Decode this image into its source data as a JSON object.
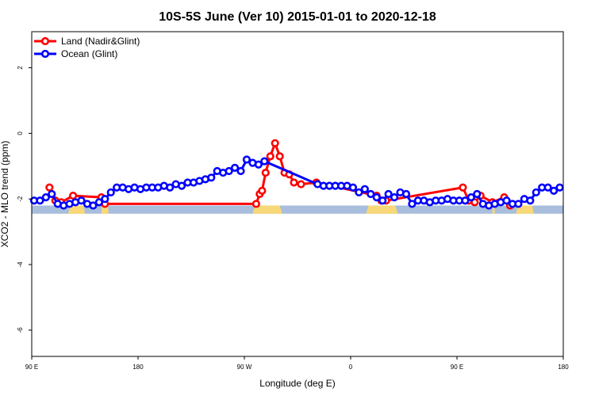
{
  "chart_data": {
    "type": "line",
    "title": "10S-5S June (Ver 10)   2015-01-01 to 2020-12-18",
    "xlabel": "Longitude (deg E)",
    "ylabel": "XCO2 - MLO trend (ppm)",
    "xlim": [
      90,
      540
    ],
    "ylim": [
      -6.8,
      3.1
    ],
    "x_ticks": [
      {
        "value": 90,
        "label": "90 E"
      },
      {
        "value": 180,
        "label": "180"
      },
      {
        "value": 270,
        "label": "90 W"
      },
      {
        "value": 360,
        "label": "0"
      },
      {
        "value": 450,
        "label": "90 E"
      },
      {
        "value": 540,
        "label": "180"
      }
    ],
    "y_ticks": [
      {
        "value": -6,
        "label": "-6"
      },
      {
        "value": -4,
        "label": "-4"
      },
      {
        "value": -2,
        "label": "-2"
      },
      {
        "value": 0,
        "label": "0"
      },
      {
        "value": 2,
        "label": "2"
      }
    ],
    "legend_position": "top-left",
    "grid": false,
    "surface_band": {
      "y_top": -2.2,
      "y_bottom": -2.45,
      "ocean_color": "#a8bedc",
      "land_color": "#f8d878"
    },
    "land_segments": [
      [
        277,
        302
      ],
      [
        373,
        400
      ],
      [
        121,
        135
      ],
      [
        480,
        482
      ],
      [
        149,
        155
      ],
      [
        500,
        515
      ]
    ],
    "series": [
      {
        "name": "Land (Nadir&Glint)",
        "color": "#ff0000",
        "x": [
          105,
          110,
          115,
          125,
          149,
          152,
          280,
          283,
          285,
          288,
          292,
          296,
          300,
          304,
          308,
          312,
          318,
          331,
          382,
          386,
          390,
          455,
          460,
          465,
          470,
          480,
          490,
          495
        ],
        "y": [
          -1.65,
          -2.05,
          -2.1,
          -1.9,
          -1.95,
          -2.15,
          -2.15,
          -1.85,
          -1.75,
          -1.2,
          -0.7,
          -0.3,
          -0.7,
          -1.2,
          -1.25,
          -1.5,
          -1.55,
          -1.5,
          -1.9,
          -2.05,
          -2.05,
          -1.65,
          -2.05,
          -2.1,
          -1.9,
          -2.1,
          -1.95,
          -2.2
        ]
      },
      {
        "name": "Ocean (Glint)",
        "color": "#0000ff",
        "x": [
          92,
          97,
          102,
          107,
          112,
          117,
          122,
          127,
          132,
          137,
          142,
          147,
          152,
          157,
          162,
          167,
          172,
          177,
          182,
          187,
          192,
          197,
          202,
          207,
          212,
          217,
          222,
          227,
          232,
          237,
          242,
          247,
          252,
          257,
          262,
          267,
          272,
          277,
          282,
          287,
          332,
          337,
          342,
          347,
          352,
          357,
          362,
          367,
          372,
          377,
          382,
          387,
          392,
          397,
          402,
          407,
          412,
          417,
          422,
          427,
          432,
          437,
          442,
          447,
          452,
          457,
          462,
          467,
          472,
          477,
          482,
          487,
          492,
          497,
          502,
          507,
          512,
          517,
          522,
          527,
          532,
          537
        ],
        "y": [
          -2.05,
          -2.05,
          -1.95,
          -1.85,
          -2.15,
          -2.2,
          -2.15,
          -2.1,
          -2.05,
          -2.15,
          -2.2,
          -2.1,
          -2.0,
          -1.8,
          -1.65,
          -1.65,
          -1.7,
          -1.65,
          -1.7,
          -1.65,
          -1.65,
          -1.65,
          -1.6,
          -1.65,
          -1.55,
          -1.6,
          -1.5,
          -1.5,
          -1.45,
          -1.4,
          -1.35,
          -1.15,
          -1.2,
          -1.15,
          -1.05,
          -1.15,
          -0.8,
          -0.9,
          -0.95,
          -0.85,
          -1.55,
          -1.6,
          -1.6,
          -1.6,
          -1.6,
          -1.6,
          -1.65,
          -1.8,
          -1.7,
          -1.85,
          -1.95,
          -2.05,
          -1.85,
          -1.95,
          -1.8,
          -1.85,
          -2.15,
          -2.05,
          -2.05,
          -2.1,
          -2.05,
          -2.05,
          -2.0,
          -2.05,
          -2.05,
          -2.05,
          -1.95,
          -1.85,
          -2.15,
          -2.2,
          -2.15,
          -2.1,
          -2.05,
          -2.15,
          -2.15,
          -2.0,
          -2.05,
          -1.8,
          -1.65,
          -1.65,
          -1.75,
          -1.65
        ]
      }
    ]
  }
}
